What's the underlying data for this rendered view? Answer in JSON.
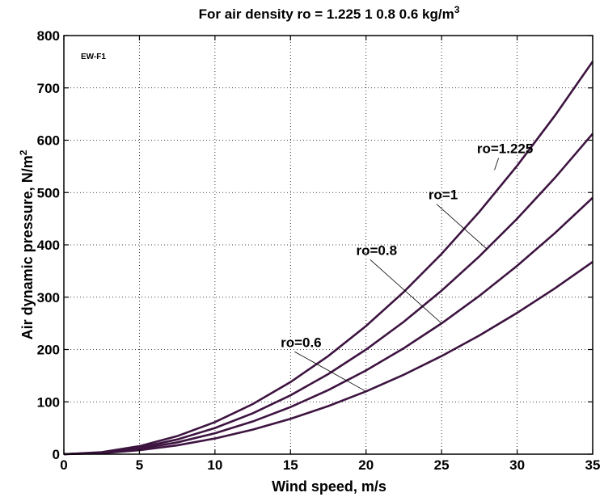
{
  "chart_data": {
    "type": "line",
    "title_main": "For air density ro = 1.225  1  0.8  0.6 kg/m",
    "title_sup": "3",
    "xlabel": "Wind speed, m/s",
    "ylabel_main": "Air dynamic pressure, N/m",
    "ylabel_sup": "2",
    "corner_tag": "EW-F1",
    "xlim": [
      0,
      35
    ],
    "ylim": [
      0,
      800
    ],
    "xticks": [
      0,
      5,
      10,
      15,
      20,
      25,
      30,
      35
    ],
    "yticks": [
      0,
      100,
      200,
      300,
      400,
      500,
      600,
      700,
      800
    ],
    "grid": true,
    "line_color": "#3d1440",
    "x": [
      0,
      2.5,
      5,
      7.5,
      10,
      12.5,
      15,
      17.5,
      20,
      22.5,
      25,
      27.5,
      30,
      32.5,
      35
    ],
    "series": [
      {
        "name": "ro=1.225",
        "values": [
          0,
          3.8,
          15.3,
          34.5,
          61.3,
          95.7,
          137.8,
          187.6,
          245.0,
          310.1,
          382.8,
          463.2,
          551.3,
          647.0,
          750.3
        ]
      },
      {
        "name": "ro=1",
        "values": [
          0,
          3.1,
          12.5,
          28.1,
          50.0,
          78.1,
          112.5,
          153.1,
          200.0,
          253.1,
          312.5,
          378.1,
          450.0,
          528.1,
          612.5
        ]
      },
      {
        "name": "ro=0.8",
        "values": [
          0,
          2.5,
          10.0,
          22.5,
          40.0,
          62.5,
          90.0,
          122.5,
          160.0,
          202.5,
          250.0,
          302.5,
          360.0,
          422.5,
          490.0
        ]
      },
      {
        "name": "ro=0.6",
        "values": [
          0,
          1.9,
          7.5,
          16.9,
          30.0,
          46.9,
          67.5,
          91.9,
          120.0,
          151.9,
          187.5,
          226.9,
          270.0,
          316.9,
          367.5
        ]
      }
    ],
    "annotations": [
      {
        "text": "ro=1.225",
        "label_at": [
          29.2,
          575
        ],
        "points_to": [
          28.5,
          543
        ]
      },
      {
        "text": "ro=1",
        "label_at": [
          25.1,
          487
        ],
        "points_to": [
          28.0,
          392
        ]
      },
      {
        "text": "ro=0.8",
        "label_at": [
          20.7,
          381
        ],
        "points_to": [
          25.0,
          250
        ]
      },
      {
        "text": "ro=0.6",
        "label_at": [
          15.7,
          205
        ],
        "points_to": [
          20.0,
          120
        ]
      }
    ]
  }
}
